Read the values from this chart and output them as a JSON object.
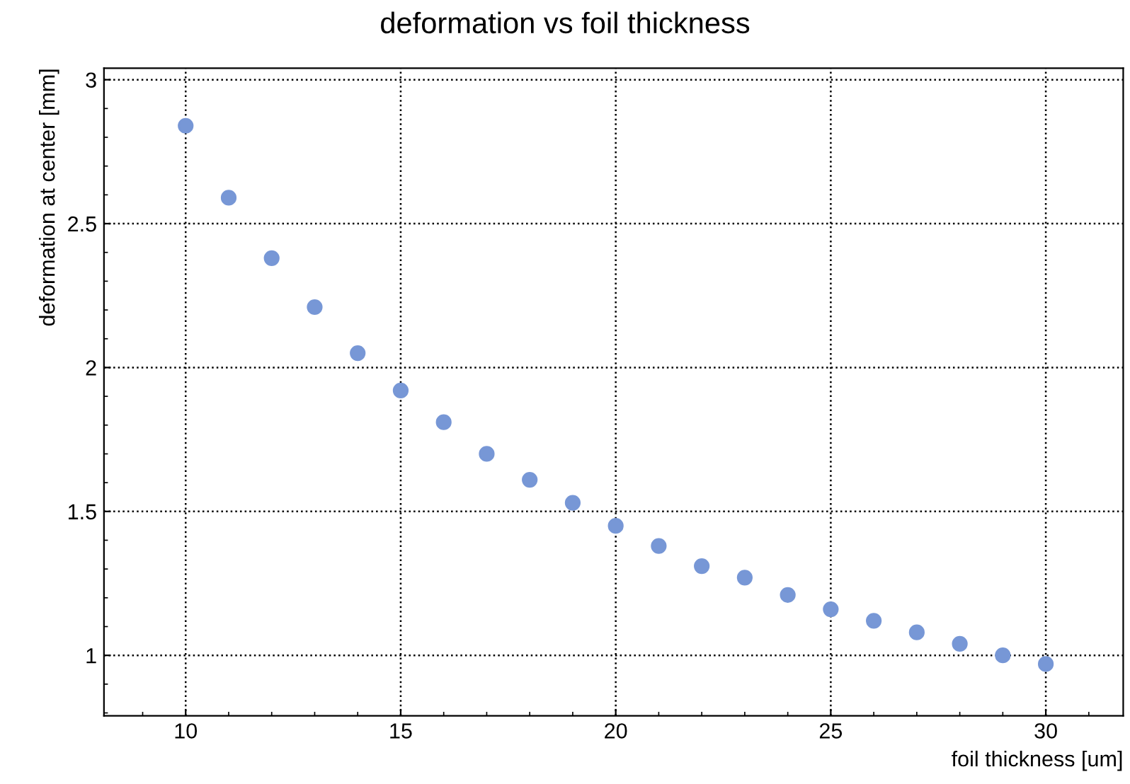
{
  "chart_data": {
    "type": "scatter",
    "title": "deformation vs foil thickness",
    "xlabel": "foil thickness [um]",
    "ylabel": "deformation at center [mm]",
    "x": [
      10,
      11,
      12,
      13,
      14,
      15,
      16,
      17,
      18,
      19,
      20,
      21,
      22,
      23,
      24,
      25,
      26,
      27,
      28,
      29,
      30
    ],
    "series": [
      {
        "color": "#7797d6",
        "values": [
          2.84,
          2.59,
          2.38,
          2.21,
          2.05,
          1.92,
          1.81,
          1.7,
          1.61,
          1.53,
          1.45,
          1.38,
          1.31,
          1.27,
          1.21,
          1.16,
          1.12,
          1.08,
          1.04,
          1.0,
          0.97
        ]
      }
    ],
    "xlim": [
      8.1,
      31.8
    ],
    "ylim": [
      0.79,
      3.04
    ],
    "xticks": [
      10,
      15,
      20,
      25,
      30
    ],
    "yticks": [
      1,
      1.5,
      2,
      2.5,
      3
    ],
    "grid": true,
    "marker": "circle",
    "legend": false
  }
}
